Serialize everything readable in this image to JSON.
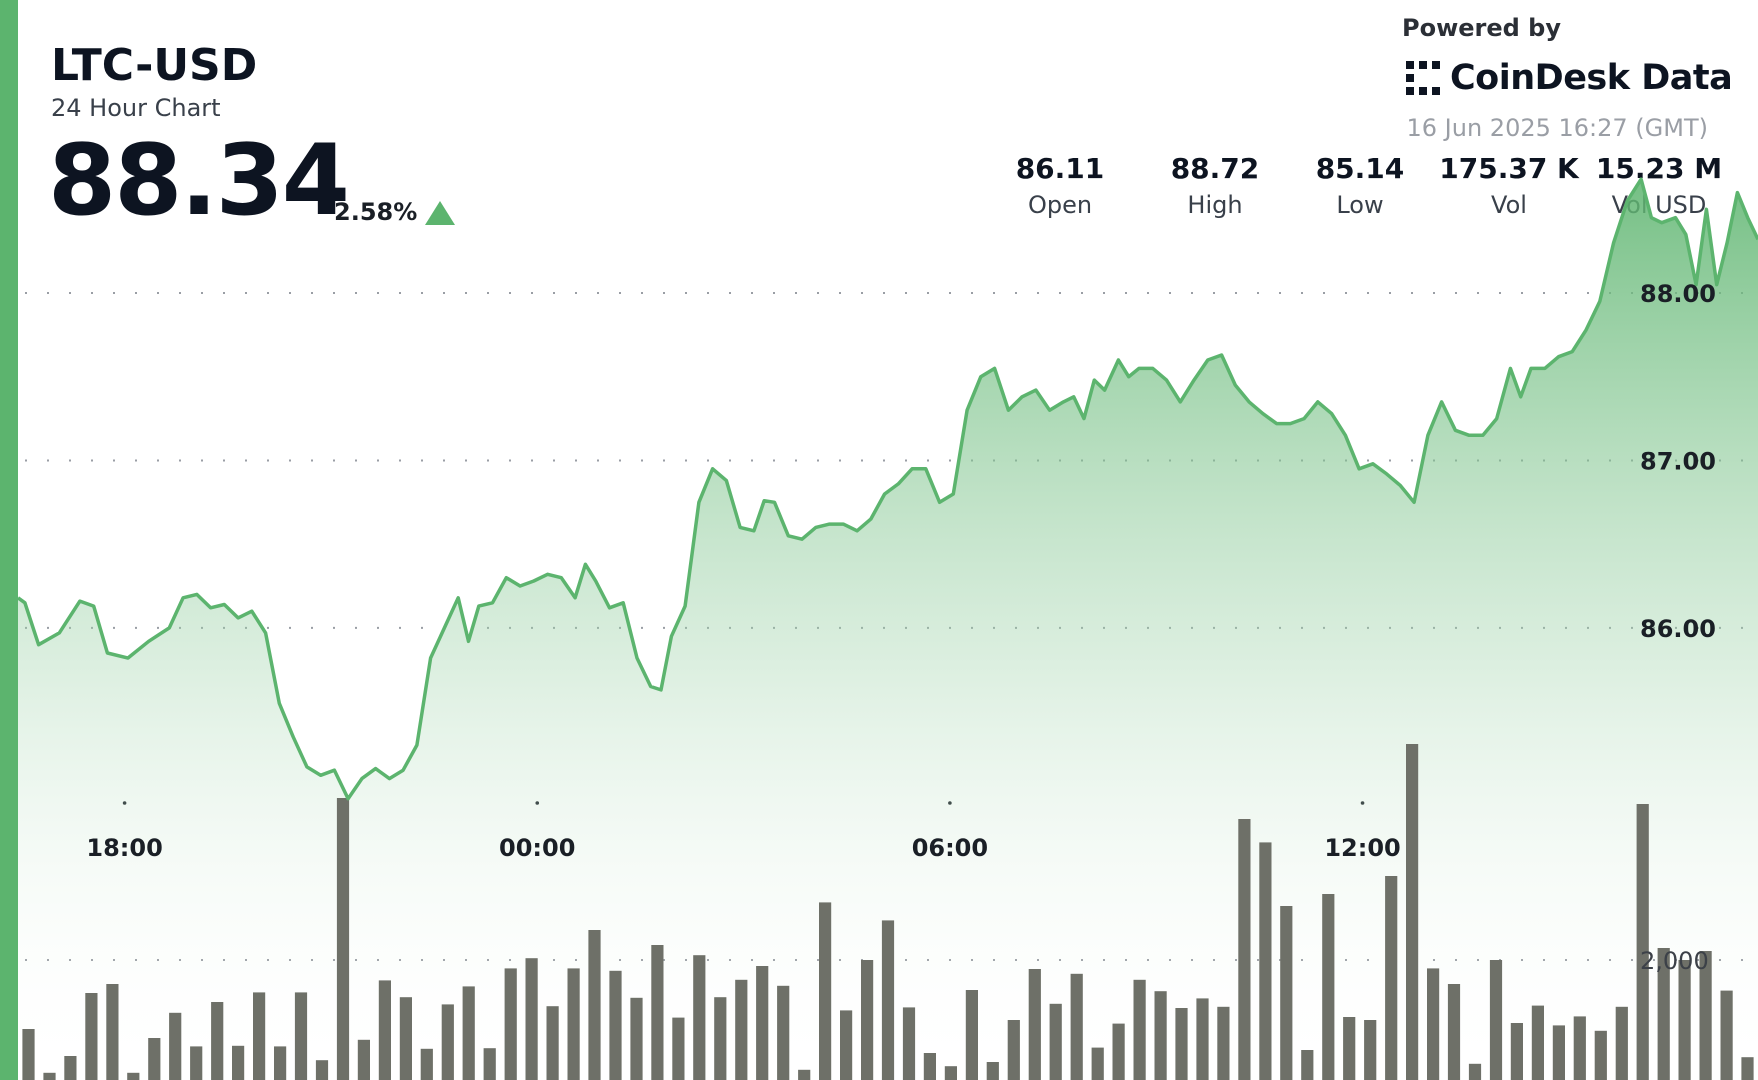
{
  "header": {
    "ticker": "LTC-USD",
    "subtitle": "24 Hour Chart",
    "price": "88.34",
    "change_pct": "2.58%",
    "change_direction": "up"
  },
  "branding": {
    "powered_by": "Powered by",
    "logo_text": "CoinDesk Data",
    "timestamp": "16 Jun 2025 16:27 (GMT)"
  },
  "stats": [
    {
      "value": "86.11",
      "label": "Open"
    },
    {
      "value": "88.72",
      "label": "High"
    },
    {
      "value": "85.14",
      "label": "Low"
    },
    {
      "value": "175.37 K",
      "label": "Vol"
    },
    {
      "value": "15.23 M",
      "label": "Vol USD"
    }
  ],
  "colors": {
    "accent": "#5cb46e",
    "line": "#5cb46e",
    "bar": "#6e7068",
    "text": "#0d1421"
  },
  "chart_data": {
    "type": "area",
    "x_unit": "hours from 16:27 on 15 Jun 2025",
    "x_ticks": [
      {
        "x": 1.55,
        "label": "18:00"
      },
      {
        "x": 7.55,
        "label": "00:00"
      },
      {
        "x": 13.55,
        "label": "06:00"
      },
      {
        "x": 19.55,
        "label": "12:00"
      }
    ],
    "y_ticks": [
      {
        "value": 86.0,
        "label": "86.00"
      },
      {
        "value": 87.0,
        "label": "87.00"
      },
      {
        "value": 88.0,
        "label": "88.00"
      }
    ],
    "ylim": [
      83.3,
      89.75
    ],
    "grid": true,
    "price_series": {
      "name": "",
      "points": [
        [
          0.0,
          86.18
        ],
        [
          0.1,
          86.15
        ],
        [
          0.3,
          85.9
        ],
        [
          0.6,
          85.97
        ],
        [
          0.9,
          86.16
        ],
        [
          1.1,
          86.13
        ],
        [
          1.3,
          85.85
        ],
        [
          1.6,
          85.82
        ],
        [
          1.9,
          85.92
        ],
        [
          2.2,
          86.0
        ],
        [
          2.4,
          86.18
        ],
        [
          2.6,
          86.2
        ],
        [
          2.8,
          86.12
        ],
        [
          3.0,
          86.14
        ],
        [
          3.2,
          86.06
        ],
        [
          3.4,
          86.1
        ],
        [
          3.6,
          85.97
        ],
        [
          3.8,
          85.55
        ],
        [
          4.0,
          85.35
        ],
        [
          4.2,
          85.17
        ],
        [
          4.4,
          85.12
        ],
        [
          4.6,
          85.15
        ],
        [
          4.8,
          84.98
        ],
        [
          5.0,
          85.1
        ],
        [
          5.2,
          85.16
        ],
        [
          5.4,
          85.1
        ],
        [
          5.6,
          85.15
        ],
        [
          5.8,
          85.3
        ],
        [
          6.0,
          85.82
        ],
        [
          6.2,
          86.0
        ],
        [
          6.4,
          86.18
        ],
        [
          6.55,
          85.92
        ],
        [
          6.7,
          86.13
        ],
        [
          6.9,
          86.15
        ],
        [
          7.1,
          86.3
        ],
        [
          7.3,
          86.25
        ],
        [
          7.5,
          86.28
        ],
        [
          7.7,
          86.32
        ],
        [
          7.9,
          86.3
        ],
        [
          8.1,
          86.18
        ],
        [
          8.25,
          86.38
        ],
        [
          8.4,
          86.28
        ],
        [
          8.6,
          86.12
        ],
        [
          8.8,
          86.15
        ],
        [
          9.0,
          85.82
        ],
        [
          9.2,
          85.65
        ],
        [
          9.35,
          85.63
        ],
        [
          9.5,
          85.95
        ],
        [
          9.7,
          86.13
        ],
        [
          9.9,
          86.75
        ],
        [
          10.1,
          86.95
        ],
        [
          10.3,
          86.88
        ],
        [
          10.5,
          86.6
        ],
        [
          10.7,
          86.58
        ],
        [
          10.85,
          86.76
        ],
        [
          11.0,
          86.75
        ],
        [
          11.2,
          86.55
        ],
        [
          11.4,
          86.53
        ],
        [
          11.6,
          86.6
        ],
        [
          11.8,
          86.62
        ],
        [
          12.0,
          86.62
        ],
        [
          12.2,
          86.58
        ],
        [
          12.4,
          86.65
        ],
        [
          12.6,
          86.8
        ],
        [
          12.8,
          86.86
        ],
        [
          13.0,
          86.95
        ],
        [
          13.2,
          86.95
        ],
        [
          13.4,
          86.75
        ],
        [
          13.6,
          86.8
        ],
        [
          13.8,
          87.3
        ],
        [
          14.0,
          87.5
        ],
        [
          14.2,
          87.55
        ],
        [
          14.4,
          87.3
        ],
        [
          14.6,
          87.38
        ],
        [
          14.8,
          87.42
        ],
        [
          15.0,
          87.3
        ],
        [
          15.2,
          87.35
        ],
        [
          15.35,
          87.38
        ],
        [
          15.5,
          87.25
        ],
        [
          15.65,
          87.48
        ],
        [
          15.8,
          87.42
        ],
        [
          16.0,
          87.6
        ],
        [
          16.15,
          87.5
        ],
        [
          16.3,
          87.55
        ],
        [
          16.5,
          87.55
        ],
        [
          16.7,
          87.48
        ],
        [
          16.9,
          87.35
        ],
        [
          17.1,
          87.48
        ],
        [
          17.3,
          87.6
        ],
        [
          17.5,
          87.63
        ],
        [
          17.7,
          87.45
        ],
        [
          17.9,
          87.35
        ],
        [
          18.1,
          87.28
        ],
        [
          18.3,
          87.22
        ],
        [
          18.5,
          87.22
        ],
        [
          18.7,
          87.25
        ],
        [
          18.9,
          87.35
        ],
        [
          19.1,
          87.28
        ],
        [
          19.3,
          87.15
        ],
        [
          19.5,
          86.95
        ],
        [
          19.7,
          86.98
        ],
        [
          19.9,
          86.92
        ],
        [
          20.1,
          86.85
        ],
        [
          20.3,
          86.75
        ],
        [
          20.5,
          87.15
        ],
        [
          20.7,
          87.35
        ],
        [
          20.9,
          87.18
        ],
        [
          21.1,
          87.15
        ],
        [
          21.3,
          87.15
        ],
        [
          21.5,
          87.25
        ],
        [
          21.7,
          87.55
        ],
        [
          21.85,
          87.38
        ],
        [
          22.0,
          87.55
        ],
        [
          22.2,
          87.55
        ],
        [
          22.4,
          87.62
        ],
        [
          22.6,
          87.65
        ],
        [
          22.8,
          87.78
        ],
        [
          23.0,
          87.95
        ],
        [
          23.2,
          88.3
        ],
        [
          23.4,
          88.55
        ],
        [
          23.6,
          88.68
        ],
        [
          23.75,
          88.45
        ],
        [
          23.9,
          88.42
        ],
        [
          24.1,
          88.45
        ],
        [
          24.25,
          88.35
        ],
        [
          24.4,
          88.05
        ],
        [
          24.55,
          88.5
        ],
        [
          24.7,
          88.05
        ],
        [
          24.85,
          88.3
        ],
        [
          25.0,
          88.6
        ],
        [
          25.15,
          88.45
        ],
        [
          25.3,
          88.32
        ]
      ]
    },
    "volume_series": {
      "name": "",
      "y_ticks": [
        {
          "value": 2000,
          "label": "2,000"
        }
      ],
      "ylim": [
        0,
        9000
      ],
      "values": [
        850,
        120,
        400,
        1450,
        1600,
        120,
        700,
        1120,
        560,
        1300,
        570,
        1460,
        560,
        1460,
        330,
        4700,
        670,
        1660,
        1380,
        520,
        1260,
        1560,
        530,
        1860,
        2030,
        1230,
        1860,
        2500,
        1820,
        1370,
        2250,
        1040,
        2080,
        1380,
        1670,
        1900,
        1570,
        170,
        2960,
        1160,
        2000,
        2660,
        1210,
        450,
        230,
        1500,
        300,
        1000,
        1850,
        1270,
        1770,
        540,
        940,
        1670,
        1480,
        1200,
        1360,
        1220,
        4350,
        3960,
        2900,
        500,
        3100,
        1050,
        1000,
        3400,
        5600,
        1860,
        1600,
        270,
        2000,
        950,
        1240,
        910,
        1060,
        820,
        1220,
        4600,
        2200,
        2000,
        2150,
        1490,
        380
      ]
    }
  }
}
